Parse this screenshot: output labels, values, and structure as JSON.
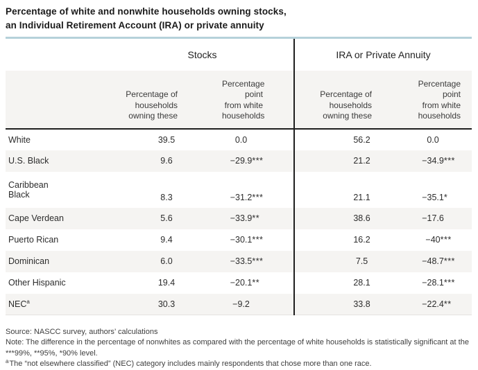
{
  "title": "Percentage of white and nonwhite households owning stocks,\nan Individual Retirement Account (IRA) or private annuity",
  "accent_colors": {
    "title_rule_blue": "#b5d1da",
    "header_band_gray": "#f5f4f2",
    "stripe_gray": "#f5f4f2",
    "line_black": "#1e1e1e"
  },
  "chart_data": {
    "type": "table",
    "title": "Percentage of white and nonwhite households owning stocks, an Individual Retirement Account (IRA) or private annuity",
    "group_headers": [
      "Stocks",
      "IRA or Private Annuity"
    ],
    "column_headers": [
      "Percentage of\nhouseholds\nowning these",
      "Percentage\npoint\nfrom white\nhouseholds",
      "Percentage of\nhouseholds\nowning these",
      "Percentage\npoint\nfrom white\nhouseholds"
    ],
    "rows": [
      {
        "label": "White",
        "stocks_pct": "39.5",
        "stocks_diff": "0.0",
        "stocks_stars": "",
        "ira_pct": "56.2",
        "ira_diff": "0.0",
        "ira_stars": ""
      },
      {
        "label": "U.S. Black",
        "stocks_pct": "9.6",
        "stocks_diff": "−29.9",
        "stocks_stars": "***",
        "ira_pct": "21.2",
        "ira_diff": "−34.9",
        "ira_stars": "***"
      },
      {
        "label": "Caribbean\nBlack",
        "stocks_pct": "8.3",
        "stocks_diff": "−31.2",
        "stocks_stars": "***",
        "ira_pct": "21.1",
        "ira_diff": "−35.1",
        "ira_stars": "*"
      },
      {
        "label": "Cape Verdean",
        "stocks_pct": "5.6",
        "stocks_diff": "−33.9",
        "stocks_stars": "**",
        "ira_pct": "38.6",
        "ira_diff": "−17.6",
        "ira_stars": ""
      },
      {
        "label": "Puerto Rican",
        "stocks_pct": "9.4",
        "stocks_diff": "−30.1",
        "stocks_stars": "***",
        "ira_pct": "16.2",
        "ira_diff": "−40",
        "ira_stars": "***"
      },
      {
        "label": "Dominican",
        "stocks_pct": "6.0",
        "stocks_diff": "−33.5",
        "stocks_stars": "***",
        "ira_pct": "7.5",
        "ira_diff": "−48.7",
        "ira_stars": "***"
      },
      {
        "label": "Other Hispanic",
        "stocks_pct": "19.4",
        "stocks_diff": "−20.1",
        "stocks_stars": "**",
        "ira_pct": "28.1",
        "ira_diff": "−28.1",
        "ira_stars": "***"
      },
      {
        "label": "NEC",
        "label_sup": "a",
        "stocks_pct": "30.3",
        "stocks_diff": "−9.2",
        "stocks_stars": "",
        "ira_pct": "33.8",
        "ira_diff": "−22.4",
        "ira_stars": "**"
      }
    ]
  },
  "footer": {
    "source": "Source: NASCC survey, authors’ calculations",
    "note": "Note: The difference in the percentage of nonwhites as compared with the percentage of white households is statistically significant at the ***99%, **95%, *90% level.",
    "footnote_marker": "a",
    "footnote": "The “not elsewhere classified” (NEC) category includes mainly respondents that chose more than one race."
  }
}
